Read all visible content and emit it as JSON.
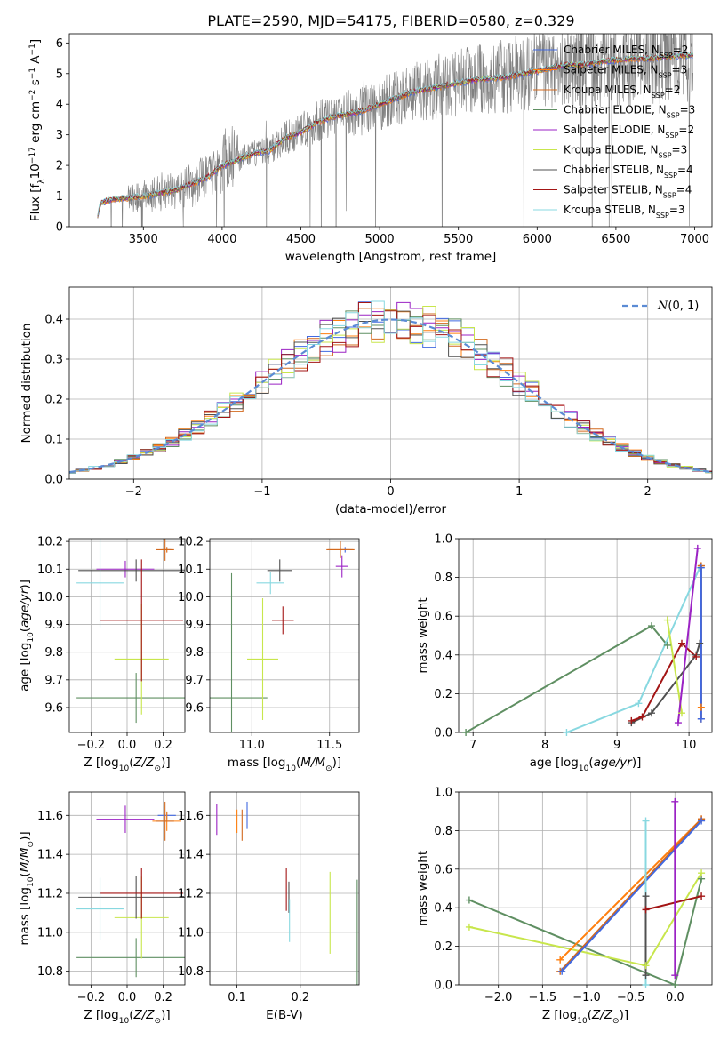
{
  "figure_title": "PLATE=2590, MJD=54175, FIBERID=0580, z=0.329",
  "series_names": [
    "Chabrier MILES",
    "Salpeter MILES",
    "Kroupa MILES",
    "Chabrier ELODIE",
    "Salpeter ELODIE",
    "Kroupa ELODIE",
    "Chabrier STELIB",
    "Salpeter STELIB",
    "Kroupa STELIB"
  ],
  "series_colors": [
    "#4169e1",
    "#ff7f0e",
    "#d2691e",
    "#5f8f62",
    "#9b22c4",
    "#c8e64c",
    "#505050",
    "#a31515",
    "#88d8e0"
  ],
  "chart_data": [
    {
      "type": "line",
      "title": "PLATE=2590, MJD=54175, FIBERID=0580, z=0.329",
      "xlabel": "wavelength [Angstrom, rest frame]",
      "ylabel": "Flux [f_λ 10^-17 erg cm^-2 s^-1 A^-1]",
      "xlim": [
        3030,
        7110
      ],
      "ylim": [
        0,
        6.3
      ],
      "xticks": [
        3500,
        4000,
        4500,
        5000,
        5500,
        6000,
        6500,
        7000
      ],
      "yticks": [
        0,
        1,
        2,
        3,
        4,
        5,
        6
      ],
      "legend": "top-right",
      "legend_entries": [
        {
          "name": "Chabrier MILES",
          "nssp": 2
        },
        {
          "name": "Salpeter MILES",
          "nssp": 3
        },
        {
          "name": "Kroupa MILES",
          "nssp": 2
        },
        {
          "name": "Chabrier ELODIE",
          "nssp": 3
        },
        {
          "name": "Salpeter ELODIE",
          "nssp": 2
        },
        {
          "name": "Kroupa ELODIE",
          "nssp": 3
        },
        {
          "name": "Chabrier STELIB",
          "nssp": 4
        },
        {
          "name": "Salpeter STELIB",
          "nssp": 4
        },
        {
          "name": "Kroupa STELIB",
          "nssp": 3
        }
      ],
      "data_color": "#808080",
      "continuum_wavelength": [
        3210,
        3230,
        3300,
        3400,
        3500,
        3600,
        3700,
        3800,
        3900,
        4000,
        4100,
        4200,
        4300,
        4400,
        4500,
        4600,
        4700,
        4800,
        4900,
        5000,
        5100,
        5200,
        5300,
        5400,
        5500,
        5600,
        5700,
        5800,
        5900,
        6000,
        6100,
        6200,
        6300,
        6400,
        6500,
        6600,
        6700,
        6800,
        6900,
        7000
      ],
      "continuum_flux": [
        0.4,
        0.8,
        0.9,
        0.95,
        1.0,
        1.1,
        1.2,
        1.4,
        1.6,
        2.0,
        2.2,
        2.4,
        2.5,
        2.9,
        3.1,
        3.4,
        3.6,
        3.7,
        3.8,
        4.0,
        4.2,
        4.4,
        4.5,
        4.6,
        4.7,
        4.8,
        4.85,
        4.9,
        5.0,
        5.1,
        5.2,
        5.3,
        5.3,
        5.4,
        5.45,
        5.5,
        5.5,
        5.55,
        5.6,
        5.6
      ]
    },
    {
      "type": "histogram",
      "xlabel": "(data-model)/error",
      "ylabel": "Normed distribution",
      "xlim": [
        -2.5,
        2.5
      ],
      "ylim": [
        0,
        0.48
      ],
      "xticks": [
        -2,
        -1,
        0,
        1,
        2
      ],
      "yticks": [
        0.0,
        0.1,
        0.2,
        0.3,
        0.4
      ],
      "bin_width": 0.1,
      "reference_curve": "N(0,1)",
      "legend": "top-right",
      "grid": true
    },
    {
      "type": "scatter",
      "xlabel": "Z [log10(Z/Z⊙)]",
      "ylabel": "age [log10(age/yr)]",
      "xlim": [
        -0.32,
        0.32
      ],
      "ylim": [
        9.51,
        10.21
      ],
      "xticks": [
        -0.2,
        0.0,
        0.2
      ],
      "yticks": [
        9.6,
        9.7,
        9.8,
        9.9,
        10.0,
        10.1,
        10.2
      ],
      "points": [
        {
          "x": 0.22,
          "y": 10.17,
          "xerr": 0.02,
          "yerr": 0.01
        },
        {
          "x": 0.22,
          "y": 10.17,
          "xerr": 0.03,
          "yerr": 0.01
        },
        {
          "x": 0.21,
          "y": 10.17,
          "xerr": 0.05,
          "yerr": 0.04
        },
        {
          "x": 0.05,
          "y": 9.635,
          "xerr": 0.33,
          "yerr": 0.09
        },
        {
          "x": -0.01,
          "y": 10.1,
          "xerr": 0.16,
          "yerr": 0.03
        },
        {
          "x": 0.08,
          "y": 9.775,
          "xerr": 0.15,
          "yerr": 0.2
        },
        {
          "x": 0.05,
          "y": 10.095,
          "xerr": 0.32,
          "yerr": 0.04
        },
        {
          "x": 0.08,
          "y": 9.915,
          "xerr": 0.23,
          "yerr": 0.22
        },
        {
          "x": -0.15,
          "y": 10.05,
          "xerr": 0.13,
          "yerr": 0.16
        }
      ]
    },
    {
      "type": "scatter",
      "xlabel": "mass [log10(M/M⊙)]",
      "ylabel": "",
      "xlim": [
        10.73,
        11.69
      ],
      "ylim": [
        9.51,
        10.21
      ],
      "xticks": [
        11.0,
        11.5
      ],
      "yticks": [
        9.6,
        9.7,
        9.8,
        9.9,
        10.0,
        10.1,
        10.2
      ],
      "points": [
        {
          "x": 11.6,
          "y": 10.17,
          "xerr": 0.03,
          "yerr": 0.01
        },
        {
          "x": 11.57,
          "y": 10.17,
          "xerr": 0.08,
          "yerr": 0.01
        },
        {
          "x": 11.57,
          "y": 10.17,
          "xerr": 0.09,
          "yerr": 0.03
        },
        {
          "x": 10.87,
          "y": 9.635,
          "xerr": 0.23,
          "yerr": 0.45
        },
        {
          "x": 11.58,
          "y": 10.11,
          "xerr": 0.04,
          "yerr": 0.04
        },
        {
          "x": 11.07,
          "y": 9.775,
          "xerr": 0.1,
          "yerr": 0.22
        },
        {
          "x": 11.18,
          "y": 10.095,
          "xerr": 0.08,
          "yerr": 0.04
        },
        {
          "x": 11.2,
          "y": 9.915,
          "xerr": 0.07,
          "yerr": 0.05
        },
        {
          "x": 11.12,
          "y": 10.05,
          "xerr": 0.09,
          "yerr": 0.04
        }
      ]
    },
    {
      "type": "line",
      "xlabel": "age [log10(age/yr)]",
      "ylabel": "mass weight",
      "xlim": [
        6.8,
        10.32
      ],
      "ylim": [
        0,
        1.0
      ],
      "xticks": [
        7,
        8,
        9,
        10
      ],
      "yticks": [
        0.0,
        0.2,
        0.4,
        0.6,
        0.8,
        1.0
      ],
      "series": [
        {
          "name": "Chabrier ELODIE",
          "x": [
            6.9,
            9.48,
            9.7
          ],
          "y": [
            0.0,
            0.55,
            0.45
          ]
        },
        {
          "name": "Kroupa STELIB",
          "x": [
            8.3,
            9.3,
            10.15
          ],
          "y": [
            0.0,
            0.15,
            0.85
          ]
        },
        {
          "name": "Chabrier STELIB",
          "x": [
            9.2,
            9.48,
            10.1,
            10.15
          ],
          "y": [
            0.05,
            0.1,
            0.4,
            0.46
          ]
        },
        {
          "name": "Salpeter STELIB",
          "x": [
            9.2,
            9.35,
            9.9,
            10.1
          ],
          "y": [
            0.06,
            0.08,
            0.46,
            0.39
          ]
        },
        {
          "name": "Kroupa ELODIE",
          "x": [
            9.7,
            9.9
          ],
          "y": [
            0.58,
            0.1
          ]
        },
        {
          "name": "Salpeter ELODIE",
          "x": [
            9.85,
            10.12
          ],
          "y": [
            0.05,
            0.95
          ]
        },
        {
          "name": "Salpeter MILES",
          "x": [
            10.17,
            10.17
          ],
          "y": [
            0.13,
            0.86
          ]
        },
        {
          "name": "Kroupa MILES",
          "x": [
            10.17,
            10.17
          ],
          "y": [
            0.07,
            0.86
          ]
        },
        {
          "name": "Chabrier MILES",
          "x": [
            10.17,
            10.17
          ],
          "y": [
            0.07,
            0.85
          ]
        }
      ]
    },
    {
      "type": "scatter",
      "xlabel": "Z [log10(Z/Z⊙)]",
      "ylabel": "mass [log10(M/M⊙)]",
      "xlim": [
        -0.32,
        0.32
      ],
      "ylim": [
        10.73,
        11.72
      ],
      "xticks": [
        -0.2,
        0.0,
        0.2
      ],
      "yticks": [
        10.8,
        11.0,
        11.2,
        11.4,
        11.6
      ],
      "points": [
        {
          "x": 0.22,
          "y": 11.6,
          "xerr": 0.05,
          "yerr": 0.02
        },
        {
          "x": 0.22,
          "y": 11.57,
          "xerr": 0.08,
          "yerr": 0.05
        },
        {
          "x": 0.21,
          "y": 11.57,
          "xerr": 0.05,
          "yerr": 0.1
        },
        {
          "x": 0.05,
          "y": 10.87,
          "xerr": 0.33,
          "yerr": 0.1
        },
        {
          "x": -0.01,
          "y": 11.58,
          "xerr": 0.16,
          "yerr": 0.07
        },
        {
          "x": 0.08,
          "y": 11.075,
          "xerr": 0.15,
          "yerr": 0.21
        },
        {
          "x": 0.05,
          "y": 11.18,
          "xerr": 0.32,
          "yerr": 0.11
        },
        {
          "x": 0.08,
          "y": 11.2,
          "xerr": 0.23,
          "yerr": 0.13
        },
        {
          "x": -0.15,
          "y": 11.12,
          "xerr": 0.13,
          "yerr": 0.16
        }
      ]
    },
    {
      "type": "scatter",
      "xlabel": "E(B-V)",
      "ylabel": "",
      "xlim": [
        0.057,
        0.293
      ],
      "ylim": [
        10.73,
        11.72
      ],
      "xticks": [
        0.1,
        0.2
      ],
      "yticks": [
        10.8,
        11.0,
        11.2,
        11.4,
        11.6
      ],
      "points": [
        {
          "x": 0.116,
          "y": 11.6,
          "yerr": 0.07
        },
        {
          "x": 0.1,
          "y": 11.57,
          "yerr": 0.06
        },
        {
          "x": 0.108,
          "y": 11.55,
          "yerr": 0.08
        },
        {
          "x": 0.29,
          "y": 11.0,
          "yerr": 0.27
        },
        {
          "x": 0.068,
          "y": 11.58,
          "yerr": 0.08
        },
        {
          "x": 0.247,
          "y": 11.1,
          "yerr": 0.21
        },
        {
          "x": 0.182,
          "y": 11.18,
          "yerr": 0.08
        },
        {
          "x": 0.178,
          "y": 11.22,
          "yerr": 0.11
        },
        {
          "x": 0.183,
          "y": 11.06,
          "yerr": 0.11
        }
      ]
    },
    {
      "type": "line",
      "xlabel": "Z [log10(Z/Z⊙)]",
      "ylabel": "mass weight",
      "xlim": [
        -2.45,
        0.42
      ],
      "ylim": [
        0,
        1.0
      ],
      "xticks": [
        -2.0,
        -1.5,
        -1.0,
        -0.5,
        0.0
      ],
      "yticks": [
        0.0,
        0.2,
        0.4,
        0.6,
        0.8,
        1.0
      ],
      "series": [
        {
          "name": "Chabrier ELODIE",
          "x": [
            -2.33,
            0.0,
            0.3
          ],
          "y": [
            0.44,
            0.0,
            0.55
          ]
        },
        {
          "name": "Kroupa ELODIE",
          "x": [
            -2.33,
            -0.33,
            0.3
          ],
          "y": [
            0.3,
            0.1,
            0.58
          ]
        },
        {
          "name": "Salpeter MILES",
          "x": [
            -1.3,
            0.3
          ],
          "y": [
            0.13,
            0.86
          ]
        },
        {
          "name": "Kroupa MILES",
          "x": [
            -1.3,
            0.3
          ],
          "y": [
            0.07,
            0.86
          ]
        },
        {
          "name": "Chabrier MILES",
          "x": [
            -1.28,
            0.3
          ],
          "y": [
            0.07,
            0.85
          ]
        },
        {
          "name": "Salpeter STELIB",
          "x": [
            -0.33,
            0.3
          ],
          "y": [
            0.39,
            0.46
          ]
        },
        {
          "name": "Kroupa STELIB",
          "x": [
            -0.33,
            -0.33
          ],
          "y": [
            0.0,
            0.85
          ]
        },
        {
          "name": "Chabrier STELIB",
          "x": [
            -0.33,
            -0.33
          ],
          "y": [
            0.05,
            0.46
          ]
        },
        {
          "name": "Salpeter ELODIE",
          "x": [
            0.0,
            0.0
          ],
          "y": [
            0.05,
            0.95
          ]
        }
      ]
    }
  ]
}
